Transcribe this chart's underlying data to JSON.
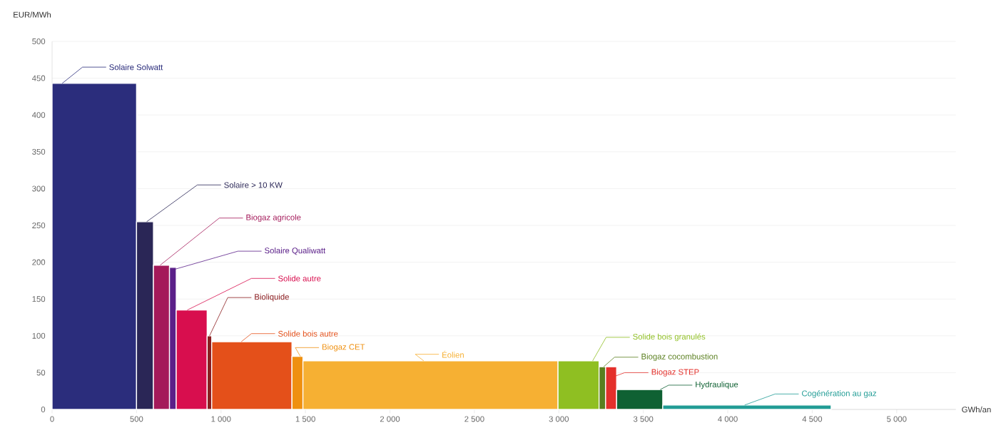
{
  "chart_data": {
    "type": "histogram",
    "xlabel": "GWh/an",
    "ylabel": "EUR/MWh",
    "bins": [
      0,
      500,
      600,
      695,
      735,
      918,
      945,
      1420,
      1485,
      2995,
      3238,
      3277,
      3342,
      3615,
      4612
    ],
    "values": [
      443,
      255,
      196,
      193,
      135,
      100,
      92,
      72,
      66,
      66,
      58,
      58,
      27,
      6
    ],
    "colors": [
      "#2b2d7c",
      "#2a2656",
      "#a41a5a",
      "#5b2089",
      "#d80e4e",
      "#8b1d20",
      "#e4501a",
      "#ef9010",
      "#f6b033",
      "#8fbf22",
      "#5a7f1f",
      "#e4302b",
      "#0f6133",
      "#219c95"
    ],
    "annotations": [
      {
        "text": "Solaire Solwatt",
        "x": 60,
        "y": 443
      },
      {
        "text": "Solaire > 10 KW",
        "x": 560,
        "y": 255
      },
      {
        "text": "Biogaz agricole",
        "x": 640,
        "y": 196
      },
      {
        "text": "Solaire Qualiwatt",
        "x": 720,
        "y": 190
      },
      {
        "text": "Solide autre",
        "x": 800,
        "y": 135
      },
      {
        "text": "Bioliquide",
        "x": 932,
        "y": 100
      },
      {
        "text": "Solide bois autre",
        "x": 1120,
        "y": 92
      },
      {
        "text": "Biogaz CET",
        "x": 1470,
        "y": 72
      },
      {
        "text": "Éolien",
        "x": 2200,
        "y": 66
      },
      {
        "text": "Solide bois granulés",
        "x": 3200,
        "y": 66
      },
      {
        "text": "Biogaz cocombustion",
        "x": 3265,
        "y": 58
      },
      {
        "text": "Biogaz STEP",
        "x": 3330,
        "y": 45
      },
      {
        "text": "Hydraulique",
        "x": 3600,
        "y": 27
      },
      {
        "text": "Cogénération au gaz",
        "x": 4100,
        "y": 6
      }
    ],
    "xlim": [
      0,
      5350
    ],
    "ylim": [
      0,
      500
    ],
    "xticks": [
      0,
      500,
      {
        "value": 1000,
        "label": "1 000"
      },
      {
        "value": 1500,
        "label": "1 500"
      },
      {
        "value": 2000,
        "label": "2 000"
      },
      {
        "value": 2500,
        "label": "2 500"
      },
      {
        "value": 3000,
        "label": "3 000"
      },
      {
        "value": 3500,
        "label": "3 500"
      },
      {
        "value": 4000,
        "label": "4 000"
      },
      {
        "value": 4500,
        "label": "4 500"
      },
      {
        "value": 5000,
        "label": "5 000"
      }
    ],
    "yticks": [
      0,
      50,
      100,
      150,
      200,
      250,
      300,
      350,
      400,
      450,
      500
    ],
    "grid": "y"
  }
}
